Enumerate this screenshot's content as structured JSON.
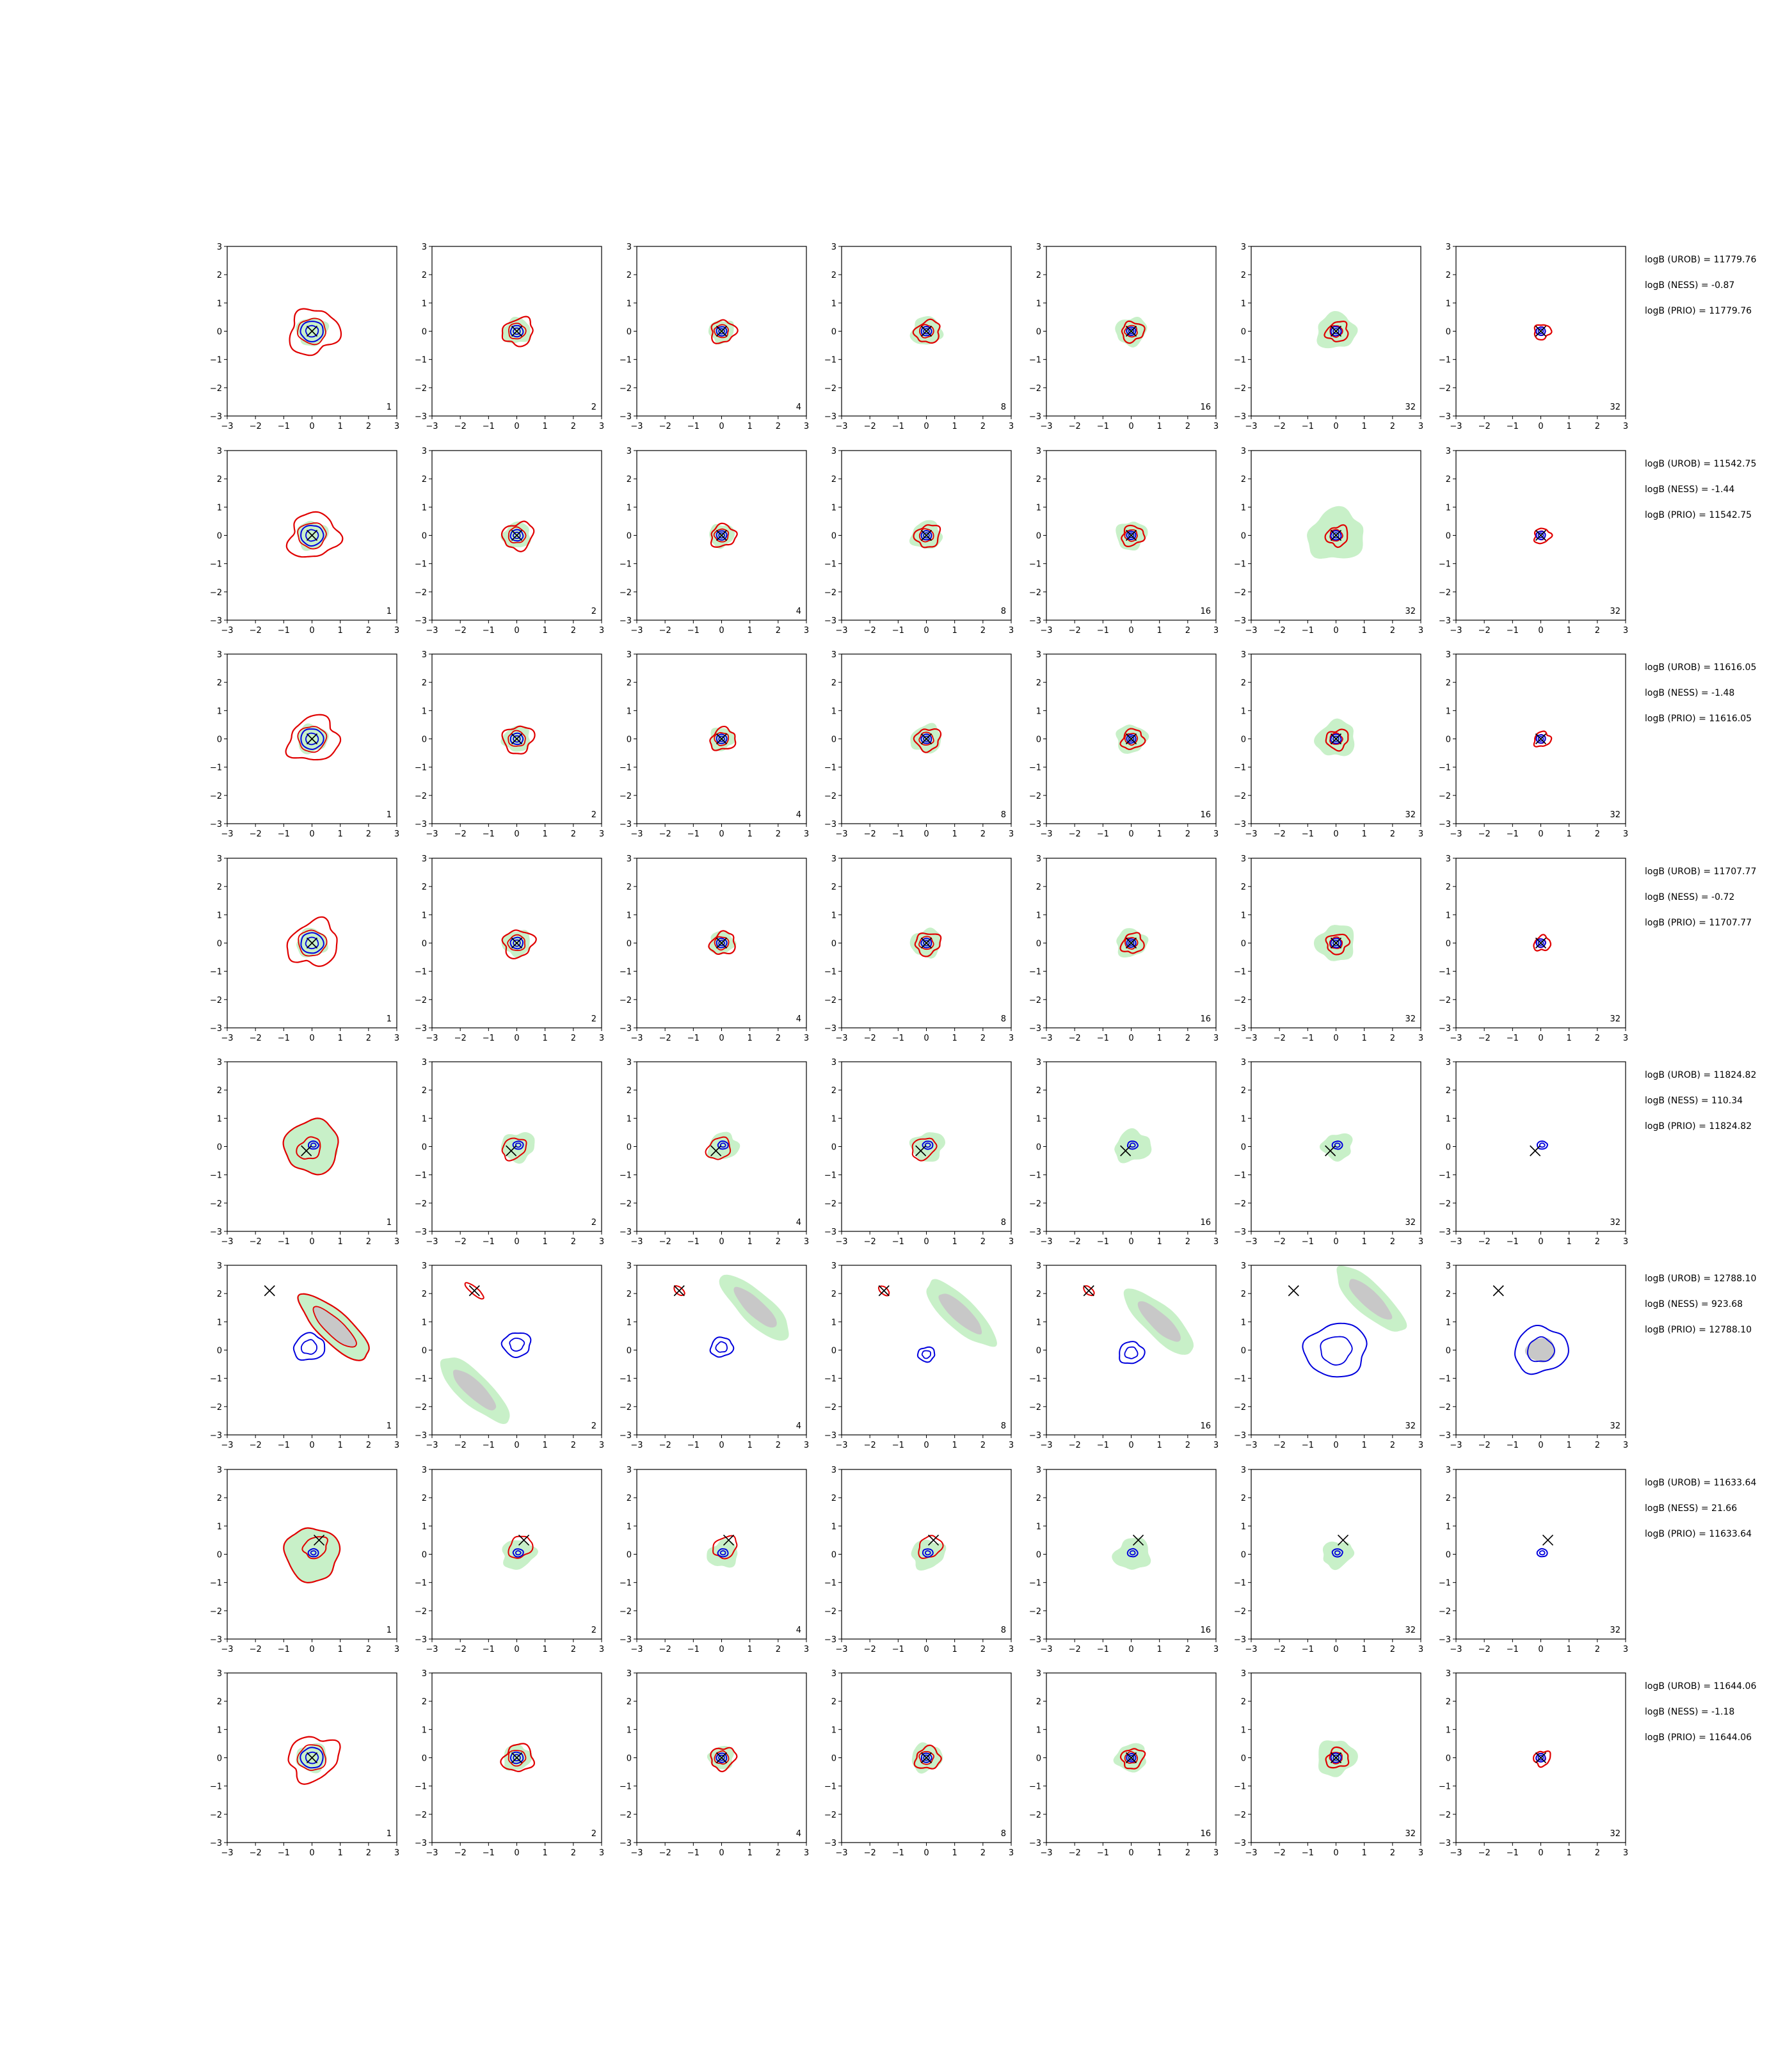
{
  "figure": {
    "columns": [
      "1",
      "2",
      "4",
      "8",
      "16",
      "32",
      "32"
    ],
    "colors": {
      "fill_green": "#c8f0c8",
      "fill_gray": "#c8c8c8",
      "red": "#e00000",
      "blue": "#0000dd",
      "cross": "#000000",
      "axis": "#000000"
    }
  },
  "chart_data": {
    "type": "contour-grid",
    "xlim": [
      -3,
      3
    ],
    "ylim": [
      -3,
      3
    ],
    "xticks": [
      "−3",
      "−2",
      "−1",
      "0",
      "1",
      "2",
      "3"
    ],
    "yticks": [
      "−3",
      "−2",
      "−1",
      "0",
      "1",
      "2",
      "3"
    ],
    "rows": [
      {
        "annotations": [
          "logB (UROB) = 11779.76",
          "logB (NESS) = -0.87",
          "logB (PRIO) = 11779.76"
        ],
        "cross": [
          0.0,
          0.0
        ],
        "mode": "center"
      },
      {
        "annotations": [
          "logB (UROB) = 11542.75",
          "logB (NESS) = -1.44",
          "logB (PRIO) = 11542.75"
        ],
        "cross": [
          0.0,
          0.0
        ],
        "mode": "center"
      },
      {
        "annotations": [
          "logB (UROB) = 11616.05",
          "logB (NESS) = -1.48",
          "logB (PRIO) = 11616.05"
        ],
        "cross": [
          0.0,
          0.0
        ],
        "mode": "center"
      },
      {
        "annotations": [
          "logB (UROB) = 11707.77",
          "logB (NESS) = -0.72",
          "logB (PRIO) = 11707.77"
        ],
        "cross": [
          0.0,
          0.0
        ],
        "mode": "center"
      },
      {
        "annotations": [
          "logB (UROB) = 11824.82",
          "logB (NESS) = 110.34",
          "logB (PRIO) = 11824.82"
        ],
        "cross": [
          -0.2,
          -0.15
        ],
        "mode": "offset"
      },
      {
        "annotations": [
          "logB (UROB) = 12788.10",
          "logB (NESS) = 923.68",
          "logB (PRIO) = 12788.10"
        ],
        "cross": [
          -1.5,
          2.1
        ],
        "mode": "far"
      },
      {
        "annotations": [
          "logB (UROB) = 11633.64",
          "logB (NESS) = 21.66",
          "logB (PRIO) = 11633.64"
        ],
        "cross": [
          0.25,
          0.5
        ],
        "mode": "offset2"
      },
      {
        "annotations": [
          "logB (UROB) = 11644.06",
          "logB (NESS) = -1.18",
          "logB (PRIO) = 11644.06"
        ],
        "cross": [
          0.0,
          0.0
        ],
        "mode": "center"
      }
    ]
  }
}
